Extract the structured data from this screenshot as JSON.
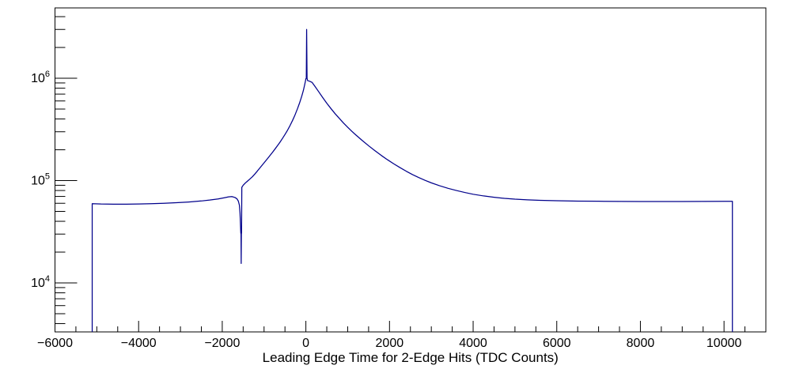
{
  "chart_data": {
    "type": "line",
    "title": "",
    "xlabel": "Leading Edge Time for 2-Edge Hits (TDC Counts)",
    "ylabel": "",
    "grid": false,
    "legend": "none",
    "background": "#ffffff",
    "frame_color": "#000000",
    "text_color": "#000000",
    "x_axis": {
      "min": -6000,
      "max": 11000,
      "major_tick_step": 2000,
      "minor_tick_step": 500,
      "tick_labels": [
        {
          "value": -6000,
          "label": "−6000"
        },
        {
          "value": -4000,
          "label": "−4000"
        },
        {
          "value": -2000,
          "label": "−2000"
        },
        {
          "value": 0,
          "label": "0"
        },
        {
          "value": 2000,
          "label": "2000"
        },
        {
          "value": 4000,
          "label": "4000"
        },
        {
          "value": 6000,
          "label": "6000"
        },
        {
          "value": 8000,
          "label": "8000"
        },
        {
          "value": 10000,
          "label": "10000"
        }
      ]
    },
    "y_axis": {
      "scale": "log",
      "min": 3320,
      "max": 4870000,
      "major_ticks": [
        {
          "value": 10000,
          "base": "10",
          "exp": "4"
        },
        {
          "value": 100000,
          "base": "10",
          "exp": "5"
        },
        {
          "value": 1000000,
          "base": "10",
          "exp": "6"
        }
      ]
    },
    "series": [
      {
        "name": "leading-edge-time-2edge-hits-histogram",
        "color": "#00008b",
        "line_width": 1.25,
        "points": [
          [
            -5110,
            3320
          ],
          [
            -5110,
            59500
          ],
          [
            -4900,
            59000
          ],
          [
            -4600,
            58800
          ],
          [
            -4300,
            58800
          ],
          [
            -4000,
            59000
          ],
          [
            -3700,
            59400
          ],
          [
            -3400,
            60000
          ],
          [
            -3100,
            60800
          ],
          [
            -2800,
            61800
          ],
          [
            -2500,
            63200
          ],
          [
            -2300,
            64500
          ],
          [
            -2100,
            66200
          ],
          [
            -1950,
            68000
          ],
          [
            -1850,
            69300
          ],
          [
            -1770,
            69800
          ],
          [
            -1700,
            68500
          ],
          [
            -1650,
            66500
          ],
          [
            -1615,
            63000
          ],
          [
            -1590,
            57500
          ],
          [
            -1575,
            48000
          ],
          [
            -1565,
            38000
          ],
          [
            -1557,
            31000
          ],
          [
            -1551,
            30000
          ],
          [
            -1547,
            15500
          ],
          [
            -1543,
            30000
          ],
          [
            -1538,
            31000
          ],
          [
            -1532,
            86000
          ],
          [
            -1500,
            90000
          ],
          [
            -1450,
            94500
          ],
          [
            -1400,
            98500
          ],
          [
            -1340,
            103500
          ],
          [
            -1280,
            109000
          ],
          [
            -1220,
            116000
          ],
          [
            -1160,
            124000
          ],
          [
            -1100,
            133000
          ],
          [
            -1040,
            142500
          ],
          [
            -980,
            152500
          ],
          [
            -920,
            163500
          ],
          [
            -860,
            175500
          ],
          [
            -800,
            188500
          ],
          [
            -740,
            203000
          ],
          [
            -680,
            219000
          ],
          [
            -620,
            237000
          ],
          [
            -560,
            258000
          ],
          [
            -500,
            282000
          ],
          [
            -440,
            310000
          ],
          [
            -380,
            344000
          ],
          [
            -320,
            386000
          ],
          [
            -260,
            438000
          ],
          [
            -200,
            505000
          ],
          [
            -150,
            575000
          ],
          [
            -100,
            665000
          ],
          [
            -60,
            760000
          ],
          [
            -30,
            860000
          ],
          [
            -10,
            940000
          ],
          [
            0,
            990000
          ],
          [
            10,
            1000000
          ],
          [
            18,
            3000000
          ],
          [
            28,
            1000000
          ],
          [
            40,
            950000
          ],
          [
            90,
            935000
          ],
          [
            150,
            910000
          ],
          [
            220,
            830000
          ],
          [
            300,
            745000
          ],
          [
            400,
            650000
          ],
          [
            500,
            570000
          ],
          [
            600,
            505000
          ],
          [
            700,
            450000
          ],
          [
            800,
            405000
          ],
          [
            900,
            365000
          ],
          [
            1000,
            332000
          ],
          [
            1100,
            303000
          ],
          [
            1200,
            278000
          ],
          [
            1350,
            246000
          ],
          [
            1500,
            219000
          ],
          [
            1650,
            196000
          ],
          [
            1800,
            176500
          ],
          [
            1950,
            160000
          ],
          [
            2100,
            146000
          ],
          [
            2250,
            134000
          ],
          [
            2400,
            123500
          ],
          [
            2550,
            114500
          ],
          [
            2700,
            107000
          ],
          [
            2850,
            100500
          ],
          [
            3000,
            95000
          ],
          [
            3200,
            89000
          ],
          [
            3400,
            84000
          ],
          [
            3600,
            80000
          ],
          [
            3800,
            76500
          ],
          [
            4000,
            73500
          ],
          [
            4250,
            70800
          ],
          [
            4500,
            68700
          ],
          [
            4750,
            67000
          ],
          [
            5000,
            65800
          ],
          [
            5300,
            64800
          ],
          [
            5600,
            64100
          ],
          [
            6000,
            63500
          ],
          [
            6500,
            63000
          ],
          [
            7000,
            62800
          ],
          [
            7500,
            62600
          ],
          [
            8000,
            62500
          ],
          [
            8500,
            62500
          ],
          [
            9000,
            62500
          ],
          [
            9500,
            62600
          ],
          [
            10000,
            62700
          ],
          [
            10200,
            62700
          ],
          [
            10200,
            3320
          ]
        ]
      }
    ]
  }
}
